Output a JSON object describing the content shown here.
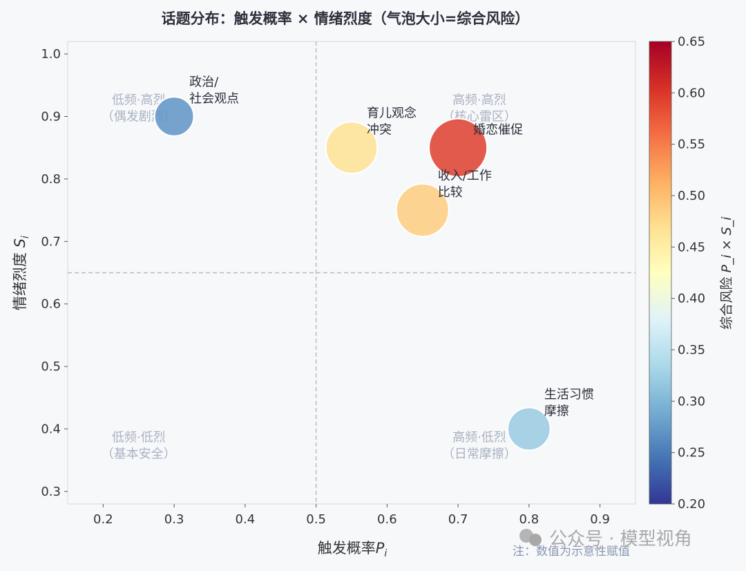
{
  "chart_data": {
    "type": "scatter",
    "title": "话题分布：触发概率 × 情绪烈度（气泡大小=综合风险）",
    "xlabel": "触发概率",
    "xlabel_var": "P",
    "xlabel_sub": "i",
    "ylabel": "情绪烈度",
    "ylabel_var": "S",
    "ylabel_sub": "i",
    "xlim": [
      0.15,
      0.95
    ],
    "ylim": [
      0.28,
      1.02
    ],
    "xticks": [
      "0.2",
      "0.3",
      "0.4",
      "0.5",
      "0.6",
      "0.7",
      "0.8",
      "0.9"
    ],
    "yticks": [
      "0.3",
      "0.4",
      "0.5",
      "0.6",
      "0.7",
      "0.8",
      "0.9",
      "1.0"
    ],
    "grid": false,
    "threshold_x": 0.5,
    "threshold_y": 0.65,
    "points": [
      {
        "label": [
          "政治/",
          "社会观点"
        ],
        "x": 0.3,
        "y": 0.9,
        "risk": 0.27
      },
      {
        "label": [
          "育儿观念",
          "冲突"
        ],
        "x": 0.55,
        "y": 0.85,
        "risk": 0.4675
      },
      {
        "label": [
          "婚恋催促"
        ],
        "x": 0.7,
        "y": 0.85,
        "risk": 0.595
      },
      {
        "label": [
          "收入/工作",
          "比较"
        ],
        "x": 0.65,
        "y": 0.75,
        "risk": 0.4875
      },
      {
        "label": [
          "生活习惯",
          "摩擦"
        ],
        "x": 0.8,
        "y": 0.4,
        "risk": 0.32
      }
    ],
    "quadrants": [
      {
        "lines": [
          "低频·高烈",
          "（偶发剧烈）"
        ],
        "x": 0.25,
        "y": 0.92
      },
      {
        "lines": [
          "高频·高烈",
          "（核心雷区）"
        ],
        "x": 0.73,
        "y": 0.92
      },
      {
        "lines": [
          "低频·低烈",
          "（基本安全）"
        ],
        "x": 0.25,
        "y": 0.38
      },
      {
        "lines": [
          "高频·低烈",
          "（日常摩擦）"
        ],
        "x": 0.73,
        "y": 0.38
      }
    ],
    "colorbar": {
      "label": "综合风险",
      "label_formula": "P_i × S_i",
      "range": [
        0.2,
        0.65
      ],
      "ticks": [
        "0.20",
        "0.25",
        "0.30",
        "0.35",
        "0.40",
        "0.45",
        "0.50",
        "0.55",
        "0.60",
        "0.65"
      ],
      "colormap": "RdYlBu_r"
    },
    "note": "注：数值为示意性赋值"
  },
  "watermark": "公众号 · 模型视角"
}
